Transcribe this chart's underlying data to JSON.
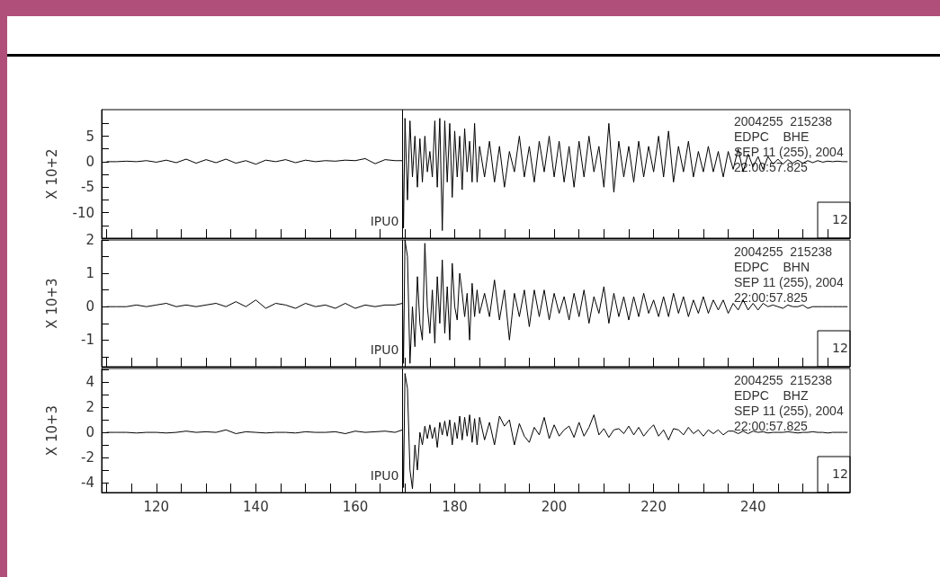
{
  "chart_data": [
    {
      "type": "line",
      "ylabel": "X 10+2",
      "xlim": [
        109,
        259.5
      ],
      "ylim": [
        -15,
        10.2
      ],
      "tick_labels": "y",
      "grid": false,
      "marker": "none",
      "line_style": "solid",
      "xticks": [
        {
          "value": 110,
          "label": null
        },
        {
          "value": 115,
          "label": null
        },
        {
          "value": 120,
          "label": null
        },
        {
          "value": 125,
          "label": null
        },
        {
          "value": 130,
          "label": null
        },
        {
          "value": 135,
          "label": null
        },
        {
          "value": 140,
          "label": null
        },
        {
          "value": 145,
          "label": null
        },
        {
          "value": 150,
          "label": null
        },
        {
          "value": 155,
          "label": null
        },
        {
          "value": 160,
          "label": null
        },
        {
          "value": 165,
          "label": null
        },
        {
          "value": 170,
          "label": null
        },
        {
          "value": 175,
          "label": null
        },
        {
          "value": 180,
          "label": null
        },
        {
          "value": 185,
          "label": null
        },
        {
          "value": 190,
          "label": null
        },
        {
          "value": 195,
          "label": null
        },
        {
          "value": 200,
          "label": null
        },
        {
          "value": 205,
          "label": null
        },
        {
          "value": 210,
          "label": null
        },
        {
          "value": 215,
          "label": null
        },
        {
          "value": 220,
          "label": null
        },
        {
          "value": 225,
          "label": null
        },
        {
          "value": 230,
          "label": null
        },
        {
          "value": 235,
          "label": null
        },
        {
          "value": 240,
          "label": null
        },
        {
          "value": 245,
          "label": null
        },
        {
          "value": 250,
          "label": null
        },
        {
          "value": 255,
          "label": null
        }
      ],
      "yticks": [
        {
          "value": -12.5,
          "label": null
        },
        -10,
        {
          "value": -7.5,
          "label": null
        },
        -5,
        {
          "value": -2.5,
          "label": null
        },
        0,
        {
          "value": 2.5,
          "label": null
        },
        5,
        {
          "value": 7.5,
          "label": null
        }
      ],
      "x": [
        110,
        112,
        114,
        116,
        118,
        120,
        122,
        124,
        126,
        128,
        130,
        132,
        134,
        136,
        138,
        140,
        142,
        144,
        146,
        148,
        150,
        152,
        154,
        156,
        158,
        160,
        162,
        164,
        166,
        168,
        169.5,
        169.7,
        170,
        170.5,
        171,
        171.5,
        172,
        172.5,
        173,
        173.5,
        174,
        174.5,
        175,
        175.5,
        176,
        176.5,
        177,
        177.5,
        178,
        178.5,
        179,
        179.5,
        180,
        180.5,
        181,
        181.5,
        182,
        182.5,
        183,
        183.5,
        184,
        184.5,
        185,
        186,
        187,
        188,
        189,
        190,
        191,
        192,
        193,
        194,
        195,
        196,
        197,
        198,
        199,
        200,
        201,
        202,
        203,
        204,
        205,
        206,
        207,
        208,
        209,
        210,
        211,
        212,
        213,
        214,
        215,
        216,
        217,
        218,
        219,
        220,
        221,
        222,
        223,
        224,
        225,
        226,
        227,
        228,
        229,
        230,
        231,
        232,
        233,
        234,
        235,
        236,
        237,
        238,
        239,
        240,
        241,
        242,
        243,
        244,
        245,
        246,
        247,
        248,
        249,
        250,
        251,
        252,
        253,
        254,
        255,
        256,
        257,
        258,
        259
      ],
      "series": [
        {
          "color": "#000000",
          "values": [
            0,
            0,
            0.1,
            0,
            0.2,
            -0.1,
            0.3,
            -0.2,
            0.5,
            -0.3,
            0.4,
            -0.2,
            0.5,
            -0.3,
            0.2,
            -0.5,
            0.3,
            0,
            0.4,
            -0.2,
            0.3,
            0,
            0.2,
            0.1,
            0.3,
            0.2,
            0.6,
            -0.4,
            0.4,
            0.2,
            0.2,
            -13,
            8.5,
            -7.5,
            8,
            -3,
            5,
            -5,
            4.5,
            -4,
            5,
            -2,
            2,
            -3,
            8,
            -5,
            8.5,
            -13.5,
            8,
            -4,
            7.5,
            -7,
            6,
            -3,
            5,
            -5.5,
            6.5,
            -2,
            4,
            -4,
            7.5,
            -4,
            3,
            -3,
            4,
            -4,
            3,
            -5,
            2,
            -2,
            5,
            -3,
            3,
            -4,
            4,
            -2,
            5,
            -3,
            4,
            -4,
            3,
            -5,
            4,
            -3,
            5,
            -2,
            3,
            -5,
            7.5,
            -6,
            4,
            -3,
            3,
            -4,
            4,
            -3,
            3,
            -2,
            5,
            -3,
            6,
            -4,
            3,
            -2,
            4,
            -3,
            2,
            -2,
            3,
            -2,
            2,
            -3,
            2,
            -1.5,
            2.5,
            -2,
            1.5,
            -1,
            1,
            -1.5,
            1,
            -0.5,
            0.5,
            -0.5,
            0.4,
            -0.3,
            0.3,
            -0.3,
            0.2,
            -0.2,
            0.2,
            -0.1,
            0.1,
            0,
            0.1,
            0,
            0
          ]
        }
      ],
      "ref_lines": [
        {
          "axis": "x",
          "value": 169.5,
          "label": "IPU0"
        }
      ],
      "annotations": [
        "2004255  215238",
        "EDPC    BHE",
        "SEP 11 (255), 2004",
        "22:00:57.825",
        "12"
      ]
    },
    {
      "type": "line",
      "ylabel": "X 10+3",
      "xlim": [
        109,
        259.5
      ],
      "ylim": [
        -1.8,
        2
      ],
      "tick_labels": "y",
      "grid": false,
      "marker": "none",
      "line_style": "solid",
      "xticks": [
        {
          "value": 110,
          "label": null
        },
        {
          "value": 115,
          "label": null
        },
        {
          "value": 120,
          "label": null
        },
        {
          "value": 125,
          "label": null
        },
        {
          "value": 130,
          "label": null
        },
        {
          "value": 135,
          "label": null
        },
        {
          "value": 140,
          "label": null
        },
        {
          "value": 145,
          "label": null
        },
        {
          "value": 150,
          "label": null
        },
        {
          "value": 155,
          "label": null
        },
        {
          "value": 160,
          "label": null
        },
        {
          "value": 165,
          "label": null
        },
        {
          "value": 170,
          "label": null
        },
        {
          "value": 175,
          "label": null
        },
        {
          "value": 180,
          "label": null
        },
        {
          "value": 185,
          "label": null
        },
        {
          "value": 190,
          "label": null
        },
        {
          "value": 195,
          "label": null
        },
        {
          "value": 200,
          "label": null
        },
        {
          "value": 205,
          "label": null
        },
        {
          "value": 210,
          "label": null
        },
        {
          "value": 215,
          "label": null
        },
        {
          "value": 220,
          "label": null
        },
        {
          "value": 225,
          "label": null
        },
        {
          "value": 230,
          "label": null
        },
        {
          "value": 235,
          "label": null
        },
        {
          "value": 240,
          "label": null
        },
        {
          "value": 245,
          "label": null
        },
        {
          "value": 250,
          "label": null
        },
        {
          "value": 255,
          "label": null
        }
      ],
      "yticks": [
        {
          "value": -1.5,
          "label": null
        },
        -1,
        {
          "value": -0.5,
          "label": null
        },
        0,
        {
          "value": 0.5,
          "label": null
        },
        1,
        {
          "value": 1.5,
          "label": null
        },
        2
      ],
      "x": [
        110,
        112,
        114,
        116,
        118,
        120,
        122,
        124,
        126,
        128,
        130,
        132,
        134,
        136,
        138,
        140,
        142,
        144,
        146,
        148,
        150,
        152,
        154,
        156,
        158,
        160,
        162,
        164,
        166,
        168,
        169.5,
        169.7,
        170,
        170.5,
        171,
        171.5,
        172,
        172.5,
        173,
        173.5,
        174,
        174.5,
        175,
        175.5,
        176,
        176.5,
        177,
        177.5,
        178,
        178.5,
        179,
        179.5,
        180,
        180.5,
        181,
        181.5,
        182,
        182.5,
        183,
        183.5,
        184,
        184.5,
        185,
        186,
        187,
        188,
        189,
        190,
        191,
        192,
        193,
        194,
        195,
        196,
        197,
        198,
        199,
        200,
        201,
        202,
        203,
        204,
        205,
        206,
        207,
        208,
        209,
        210,
        211,
        212,
        213,
        214,
        215,
        216,
        217,
        218,
        219,
        220,
        221,
        222,
        223,
        224,
        225,
        226,
        227,
        228,
        229,
        230,
        231,
        232,
        233,
        234,
        235,
        236,
        237,
        238,
        239,
        240,
        241,
        242,
        243,
        244,
        245,
        246,
        247,
        248,
        249,
        250,
        251,
        252,
        253,
        254,
        255,
        256,
        257,
        258,
        259
      ],
      "series": [
        {
          "color": "#000000",
          "values": [
            0,
            0,
            0,
            0.05,
            0,
            0.05,
            0.1,
            0,
            0.05,
            0,
            0.05,
            0.1,
            0,
            0.15,
            0,
            0.2,
            -0.05,
            0.1,
            0.05,
            -0.05,
            0.1,
            0,
            0.05,
            -0.05,
            0.1,
            -0.05,
            0.05,
            0,
            0.05,
            0.05,
            0.1,
            -1.7,
            2,
            1.5,
            -1.7,
            0,
            -1.2,
            0.9,
            -0.5,
            -1,
            1.9,
            0,
            -0.8,
            0.5,
            -1.1,
            0.9,
            -0.5,
            1.4,
            -0.8,
            0.6,
            -1,
            1.3,
            0,
            -0.4,
            1,
            0.4,
            -0.3,
            0.4,
            -1,
            0.7,
            -0.3,
            0.5,
            -0.2,
            0.4,
            -0.3,
            0.8,
            -0.4,
            0.5,
            -1,
            0.4,
            -0.3,
            0.5,
            -0.6,
            0.5,
            -0.3,
            0.5,
            -0.4,
            0.4,
            -0.2,
            0.3,
            -0.4,
            0.4,
            -0.3,
            0.5,
            -0.5,
            0.3,
            -0.2,
            0.6,
            -0.5,
            0.4,
            -0.3,
            0.3,
            -0.4,
            0.3,
            -0.3,
            0.4,
            -0.2,
            0.2,
            -0.3,
            0.3,
            -0.3,
            0.4,
            -0.2,
            0.3,
            -0.3,
            0.2,
            -0.2,
            0.3,
            -0.2,
            0.2,
            -0.1,
            0.2,
            -0.2,
            0.1,
            -0.1,
            0.2,
            -0.1,
            0.1,
            -0.1,
            0.1,
            0,
            0.05,
            0,
            -0.05,
            0.05,
            0,
            0,
            0.05,
            -0.05,
            0,
            0,
            0,
            0,
            0,
            0,
            0,
            0
          ]
        }
      ],
      "ref_lines": [
        {
          "axis": "x",
          "value": 169.5,
          "label": "IPU0"
        }
      ],
      "annotations": [
        "2004255  215238",
        "EDPC    BHN",
        "SEP 11 (255), 2004",
        "22:00:57.825",
        "12"
      ]
    },
    {
      "type": "line",
      "ylabel": "X 10+3",
      "xlim": [
        109,
        259.5
      ],
      "ylim": [
        -4.8,
        5.1
      ],
      "grid": false,
      "marker": "none",
      "line_style": "solid",
      "xticks": [
        {
          "value": 110,
          "label": null
        },
        {
          "value": 115,
          "label": null
        },
        {
          "value": 120,
          "label": "120"
        },
        {
          "value": 125,
          "label": null
        },
        {
          "value": 130,
          "label": null
        },
        {
          "value": 135,
          "label": null
        },
        {
          "value": 140,
          "label": "140"
        },
        {
          "value": 145,
          "label": null
        },
        {
          "value": 150,
          "label": null
        },
        {
          "value": 155,
          "label": null
        },
        {
          "value": 160,
          "label": "160"
        },
        {
          "value": 165,
          "label": null
        },
        {
          "value": 170,
          "label": null
        },
        {
          "value": 175,
          "label": null
        },
        {
          "value": 180,
          "label": "180"
        },
        {
          "value": 185,
          "label": null
        },
        {
          "value": 190,
          "label": null
        },
        {
          "value": 195,
          "label": null
        },
        {
          "value": 200,
          "label": "200"
        },
        {
          "value": 205,
          "label": null
        },
        {
          "value": 210,
          "label": null
        },
        {
          "value": 215,
          "label": null
        },
        {
          "value": 220,
          "label": "220"
        },
        {
          "value": 225,
          "label": null
        },
        {
          "value": 230,
          "label": null
        },
        {
          "value": 235,
          "label": null
        },
        {
          "value": 240,
          "label": "240"
        },
        {
          "value": 245,
          "label": null
        },
        {
          "value": 250,
          "label": null
        },
        {
          "value": 255,
          "label": null
        }
      ],
      "yticks": [
        -4,
        {
          "value": -3,
          "label": null
        },
        -2,
        {
          "value": -1,
          "label": null
        },
        0,
        {
          "value": 1,
          "label": null
        },
        2,
        {
          "value": 3,
          "label": null
        },
        4,
        {
          "value": 5,
          "label": null
        }
      ],
      "x": [
        110,
        112,
        114,
        116,
        118,
        120,
        122,
        124,
        126,
        128,
        130,
        132,
        134,
        136,
        138,
        140,
        142,
        144,
        146,
        148,
        150,
        152,
        154,
        156,
        158,
        160,
        162,
        164,
        166,
        168,
        169.5,
        169.7,
        170,
        170.5,
        171,
        171.5,
        172,
        172.5,
        173,
        173.5,
        174,
        174.5,
        175,
        175.5,
        176,
        176.5,
        177,
        177.5,
        178,
        178.5,
        179,
        179.5,
        180,
        180.5,
        181,
        181.5,
        182,
        182.5,
        183,
        183.5,
        184,
        184.5,
        185,
        186,
        187,
        188,
        189,
        190,
        191,
        192,
        193,
        194,
        195,
        196,
        197,
        198,
        199,
        200,
        201,
        202,
        203,
        204,
        205,
        206,
        207,
        208,
        209,
        210,
        211,
        212,
        213,
        214,
        215,
        216,
        217,
        218,
        219,
        220,
        221,
        222,
        223,
        224,
        225,
        226,
        227,
        228,
        229,
        230,
        231,
        232,
        233,
        234,
        235,
        236,
        237,
        238,
        239,
        240,
        241,
        242,
        243,
        244,
        245,
        246,
        247,
        248,
        249,
        250,
        251,
        252,
        253,
        254,
        255,
        256,
        257,
        258,
        259
      ],
      "series": [
        {
          "color": "#000000",
          "values": [
            0,
            0,
            0,
            -0.05,
            0,
            0,
            -0.05,
            0,
            0.1,
            0,
            0.05,
            0,
            0.2,
            -0.1,
            0.05,
            0,
            -0.05,
            0,
            0,
            -0.05,
            0.05,
            0,
            0,
            0.05,
            -0.1,
            0.1,
            0,
            0.05,
            0.1,
            0,
            0.2,
            -4.4,
            4.7,
            3.5,
            -3,
            -4.5,
            -1,
            -3,
            0,
            -1,
            0.5,
            -0.5,
            0.6,
            -0.5,
            0.4,
            -1.2,
            0.8,
            -0.2,
            0.9,
            -0.3,
            1,
            -1,
            0.8,
            -0.5,
            1.3,
            -0.6,
            1.2,
            -0.3,
            1.4,
            -0.8,
            1.1,
            -1,
            1.2,
            -0.6,
            0.8,
            -1,
            1.3,
            0.5,
            1,
            -1,
            0.7,
            -0.3,
            -0.8,
            0.4,
            -0.2,
            1.2,
            -0.5,
            0.6,
            -0.3,
            0.2,
            0.5,
            -0.4,
            0.8,
            -0.3,
            0.4,
            1.4,
            -0.2,
            0.3,
            -0.4,
            0.2,
            0.3,
            -0.1,
            0.5,
            -0.2,
            0.4,
            -0.3,
            0.2,
            0.6,
            -0.3,
            0.2,
            -0.6,
            0.3,
            0.2,
            -0.2,
            0.4,
            -0.1,
            0.2,
            -0.3,
            0.2,
            -0.1,
            0.2,
            -0.2,
            0.1,
            0.1,
            -0.1,
            0.1,
            -0.1,
            0.1,
            0,
            0.05,
            -0.05,
            0,
            0,
            0,
            0.05,
            0,
            -0.05,
            0,
            0,
            0.05,
            0,
            0,
            -0.05,
            0,
            0,
            0,
            0
          ]
        }
      ],
      "ref_lines": [
        {
          "axis": "x",
          "value": 169.5,
          "label": "IPU0"
        }
      ],
      "annotations": [
        "2004255  215238",
        "EDPC    BHZ",
        "SEP 11 (255), 2004",
        "22:00:57.825",
        "12"
      ]
    }
  ]
}
